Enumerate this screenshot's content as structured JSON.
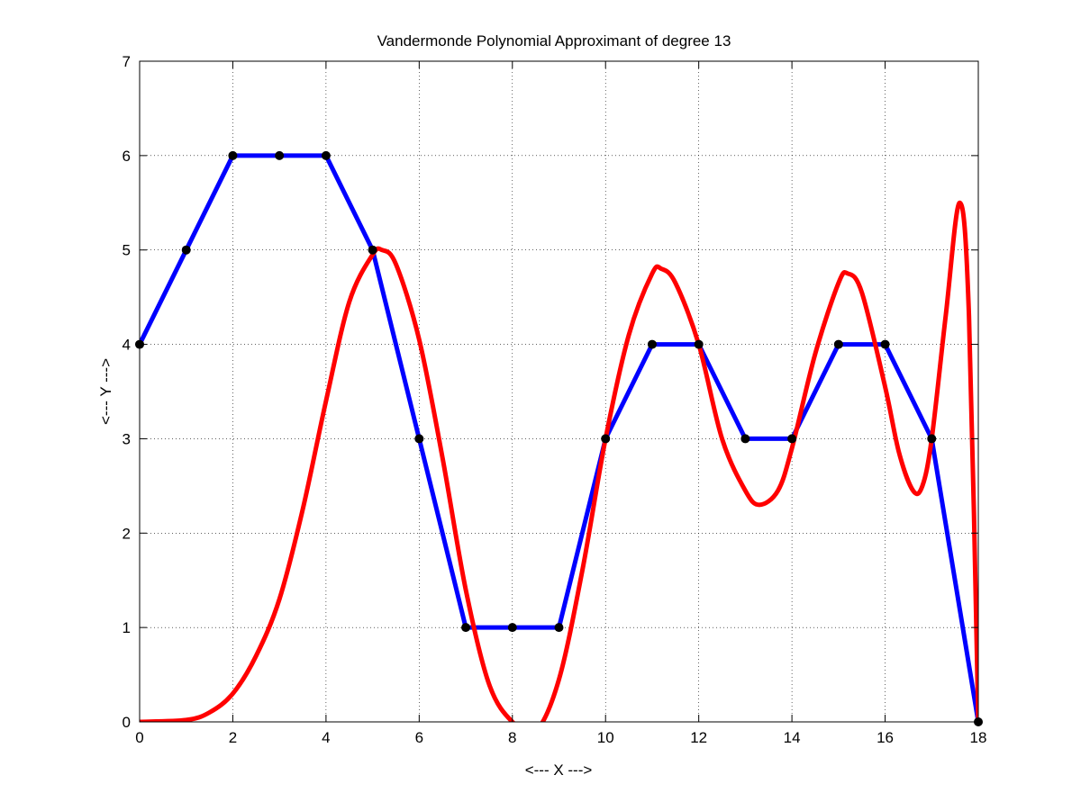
{
  "chart_data": {
    "type": "line",
    "title": "Vandermonde Polynomial Approximant of degree 13",
    "xlabel": "<--- X --->",
    "ylabel": "<--- Y --->",
    "xlim": [
      0,
      18
    ],
    "ylim": [
      0,
      7
    ],
    "x_ticks": [
      0,
      2,
      4,
      6,
      8,
      10,
      12,
      14,
      16,
      18
    ],
    "y_ticks": [
      0,
      1,
      2,
      3,
      4,
      5,
      6,
      7
    ],
    "grid": true,
    "series": [
      {
        "color": "#0000ff",
        "style": "solid",
        "x": [
          0,
          1,
          2,
          3,
          4,
          5,
          6,
          7,
          8,
          9,
          10,
          11,
          12,
          13,
          14,
          15,
          16,
          17,
          18
        ],
        "y": [
          4,
          5,
          6,
          6,
          6,
          5,
          3,
          1,
          1,
          1,
          3,
          4,
          4,
          3,
          3,
          4,
          4,
          3,
          0
        ]
      },
      {
        "color": "#ff0000",
        "style": "solid",
        "x": [
          0,
          1,
          1.5,
          2,
          2.5,
          3,
          3.5,
          4,
          4.5,
          5,
          5.2,
          5.5,
          6,
          6.5,
          7,
          7.5,
          8,
          8.5,
          9,
          9.5,
          10,
          10.5,
          11,
          11.2,
          11.5,
          12,
          12.5,
          13,
          13.3,
          13.7,
          14,
          14.5,
          15,
          15.2,
          15.5,
          16,
          16.3,
          16.6,
          16.8,
          17,
          17.3,
          17.6,
          17.8,
          18
        ],
        "y": [
          0,
          0.02,
          0.1,
          0.3,
          0.7,
          1.3,
          2.25,
          3.4,
          4.45,
          4.95,
          5.0,
          4.85,
          4.05,
          2.8,
          1.4,
          0.4,
          0,
          -0.1,
          0.45,
          1.6,
          3.0,
          4.1,
          4.75,
          4.8,
          4.65,
          4.0,
          3.0,
          2.45,
          2.3,
          2.45,
          2.9,
          3.9,
          4.65,
          4.75,
          4.55,
          3.55,
          2.85,
          2.45,
          2.5,
          3.0,
          4.3,
          5.5,
          4.3,
          0
        ]
      },
      {
        "color": "#000000",
        "style": "markers",
        "x": [
          0,
          1,
          2,
          3,
          4,
          5,
          6,
          7,
          8,
          9,
          10,
          11,
          12,
          13,
          14,
          15,
          16,
          17,
          18
        ],
        "y": [
          4,
          5,
          6,
          6,
          6,
          5,
          3,
          1,
          1,
          1,
          3,
          4,
          4,
          3,
          3,
          4,
          4,
          3,
          0
        ]
      }
    ]
  }
}
